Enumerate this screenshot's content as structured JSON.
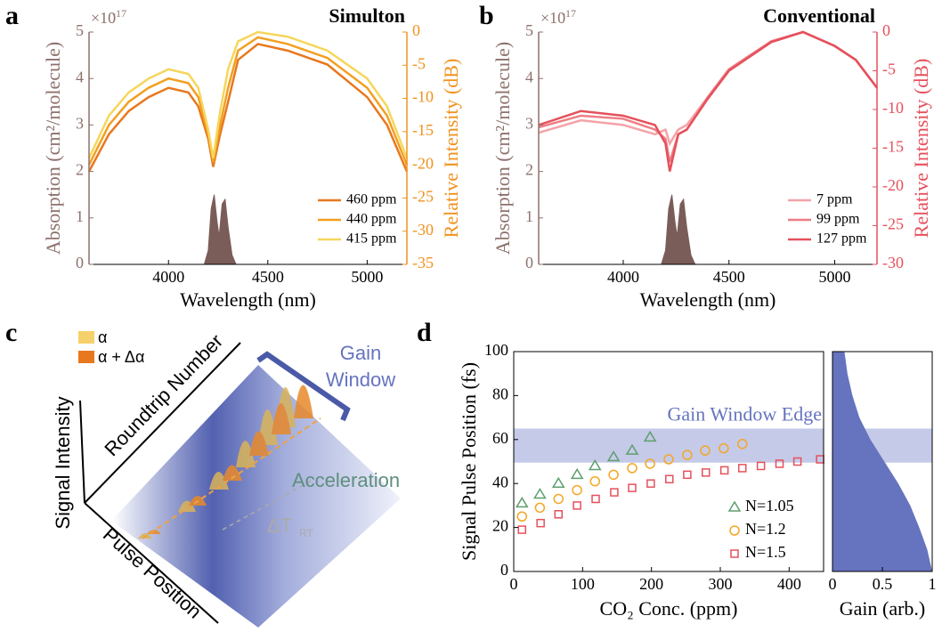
{
  "panel_labels": [
    "a",
    "b",
    "c",
    "d"
  ],
  "chart_data": [
    {
      "type": "line",
      "title": "Simulton",
      "xlabel": "Wavelength (nm)",
      "ylabel": "Absorption (cm²/molecule)",
      "y2label": "Relative Intensity (dB)",
      "y_scale_base": "×10",
      "y_scale_exponent": "-17",
      "xlim": [
        3600,
        5200
      ],
      "xticks": [
        4000,
        4500,
        5000
      ],
      "ylim": [
        0,
        5
      ],
      "yticks": [
        0,
        1,
        2,
        3,
        4,
        5
      ],
      "y2lim": [
        -35,
        0
      ],
      "y2ticks": [
        0,
        -5,
        -10,
        -15,
        -20,
        -25,
        -30,
        -35
      ],
      "ycolor": "#8d716c",
      "y2color": "#f0921e",
      "legend": "lower right",
      "area": {
        "color": "#7a5c58",
        "x": [
          4180,
          4200,
          4215,
          4230,
          4245,
          4255,
          4270,
          4285,
          4300,
          4320,
          4340
        ],
        "values": [
          0,
          0.3,
          1.2,
          1.5,
          0.9,
          0.6,
          1.3,
          1.4,
          0.8,
          0.2,
          0
        ]
      },
      "x": [
        3600,
        3700,
        3800,
        3900,
        4000,
        4100,
        4150,
        4200,
        4225,
        4260,
        4300,
        4350,
        4450,
        4600,
        4800,
        5000,
        5100,
        5200
      ],
      "series": [
        {
          "name": "460 ppm",
          "color": "#e8781e",
          "axis": "y2",
          "values": [
            -21,
            -15.4,
            -11.9,
            -9.8,
            -8.4,
            -9.1,
            -11.2,
            -16.1,
            -20.3,
            -15.4,
            -10.5,
            -4.2,
            -1.8,
            -2.8,
            -4.9,
            -9.8,
            -14,
            -21
          ]
        },
        {
          "name": "440 ppm",
          "color": "#f2a020",
          "axis": "y2",
          "values": [
            -20,
            -14,
            -10.5,
            -8.4,
            -7,
            -7.7,
            -9.8,
            -15.4,
            -19.6,
            -14,
            -8.4,
            -2.8,
            -0.8,
            -1.8,
            -3.9,
            -8.4,
            -12.6,
            -20
          ]
        },
        {
          "name": "415 ppm",
          "color": "#f6d65c",
          "axis": "y2",
          "values": [
            -19,
            -12.6,
            -9.1,
            -7,
            -5.6,
            -6.3,
            -8.4,
            -14.7,
            -19,
            -12,
            -5.6,
            -1.4,
            0,
            -0.7,
            -2.8,
            -7,
            -11.2,
            -19
          ]
        }
      ]
    },
    {
      "type": "line",
      "title": "Conventional",
      "xlabel": "Wavelength (nm)",
      "ylabel": "Absorption (cm²/molecule)",
      "y2label": "Relative Intensity (dB)",
      "y_scale_base": "×10",
      "y_scale_exponent": "-17",
      "xlim": [
        3600,
        5200
      ],
      "xticks": [
        4000,
        4500,
        5000
      ],
      "ylim": [
        0,
        5
      ],
      "yticks": [
        0,
        1,
        2,
        3,
        4,
        5
      ],
      "y2lim": [
        -30,
        0
      ],
      "y2ticks": [
        0,
        -5,
        -10,
        -15,
        -20,
        -25,
        -30
      ],
      "ycolor": "#8d716c",
      "y2color": "#e5505c",
      "legend": "lower right",
      "area": {
        "color": "#7a5c58",
        "x": [
          4180,
          4200,
          4215,
          4230,
          4245,
          4255,
          4270,
          4285,
          4300,
          4320,
          4340
        ],
        "values": [
          0,
          0.3,
          1.2,
          1.5,
          0.9,
          0.6,
          1.3,
          1.4,
          0.8,
          0.2,
          0
        ]
      },
      "x": [
        3600,
        3800,
        4000,
        4150,
        4200,
        4220,
        4260,
        4300,
        4400,
        4500,
        4700,
        4850,
        5000,
        5100,
        5200
      ],
      "series": [
        {
          "name": "7 ppm",
          "color": "#f4a3a8",
          "axis": "y2",
          "values": [
            -13,
            -11.4,
            -12,
            -13.2,
            -12.6,
            -14.4,
            -12.6,
            -12,
            -8.4,
            -4.8,
            -1.2,
            0,
            -1.8,
            -3.6,
            -7.2
          ]
        },
        {
          "name": "99 ppm",
          "color": "#ee7d84",
          "axis": "y2",
          "values": [
            -12.3,
            -10.8,
            -11.2,
            -12.6,
            -13.8,
            -16.8,
            -13.2,
            -12.6,
            -8.4,
            -4.8,
            -1.2,
            0,
            -1.8,
            -3.6,
            -7.2
          ]
        },
        {
          "name": "127 ppm",
          "color": "#e5505c",
          "axis": "y2",
          "values": [
            -12,
            -10.2,
            -10.8,
            -12,
            -14.4,
            -18,
            -13.2,
            -12.6,
            -8.6,
            -5,
            -1.3,
            0,
            -1.8,
            -3.6,
            -7.2
          ]
        }
      ]
    },
    {
      "type": "scatter",
      "xlabel": "CO₂ Conc. (ppm)",
      "ylabel": "Signal Pulse Position (fs)",
      "xlim": [
        0,
        450
      ],
      "xticks": [
        0,
        100,
        200,
        300,
        400
      ],
      "ylim": [
        0,
        100
      ],
      "yticks": [
        0,
        20,
        40,
        60,
        80,
        100
      ],
      "legend": "lower right",
      "band": {
        "range": [
          49.5,
          65
        ],
        "label": "Gain Window Edge",
        "color": "#c5cae8",
        "label_color": "#6673bf"
      },
      "series": [
        {
          "name": "N=1.05",
          "color": "#5e9e6e",
          "marker": "triangle",
          "x": [
            12,
            38,
            65,
            92,
            118,
            145,
            172,
            198
          ],
          "values": [
            31,
            35,
            40,
            44,
            48,
            52,
            55,
            61
          ]
        },
        {
          "name": "N=1.2",
          "color": "#f5a623",
          "marker": "circle",
          "x": [
            12,
            38,
            65,
            92,
            118,
            145,
            172,
            198,
            225,
            252,
            278,
            305,
            332
          ],
          "values": [
            25,
            29,
            33,
            37,
            41,
            44,
            47,
            49,
            51,
            53,
            55,
            56,
            58
          ]
        },
        {
          "name": "N=1.5",
          "color": "#e5505c",
          "marker": "square",
          "x": [
            12,
            39,
            65,
            92,
            119,
            146,
            172,
            199,
            226,
            252,
            279,
            306,
            332,
            359,
            386,
            412,
            445
          ],
          "values": [
            19,
            22,
            26,
            30,
            33,
            36,
            38,
            40,
            42,
            44,
            45,
            46,
            47,
            48,
            49,
            50,
            51
          ]
        }
      ]
    },
    {
      "type": "area",
      "xlabel": "Gain (arb.)",
      "xlim": [
        0,
        1
      ],
      "xticks": [
        0,
        0.5,
        1
      ],
      "ylim": [
        0,
        100
      ],
      "color": "#6673bf",
      "y": [
        0,
        10,
        20,
        30,
        40,
        50,
        60,
        70,
        80,
        90,
        100
      ],
      "values": [
        1,
        0.95,
        0.87,
        0.78,
        0.66,
        0.52,
        0.38,
        0.27,
        0.2,
        0.15,
        0.12
      ]
    }
  ],
  "diagram": {
    "legend": [
      "α",
      "α + Δα"
    ],
    "axes": [
      "Signal Intensity",
      "Roundtrip Number",
      "Pulse Position"
    ],
    "gain_window": [
      "Gain",
      "Window"
    ],
    "acceleration": "Acceleration",
    "delta": "ΔT",
    "delta_sub": "RT"
  }
}
